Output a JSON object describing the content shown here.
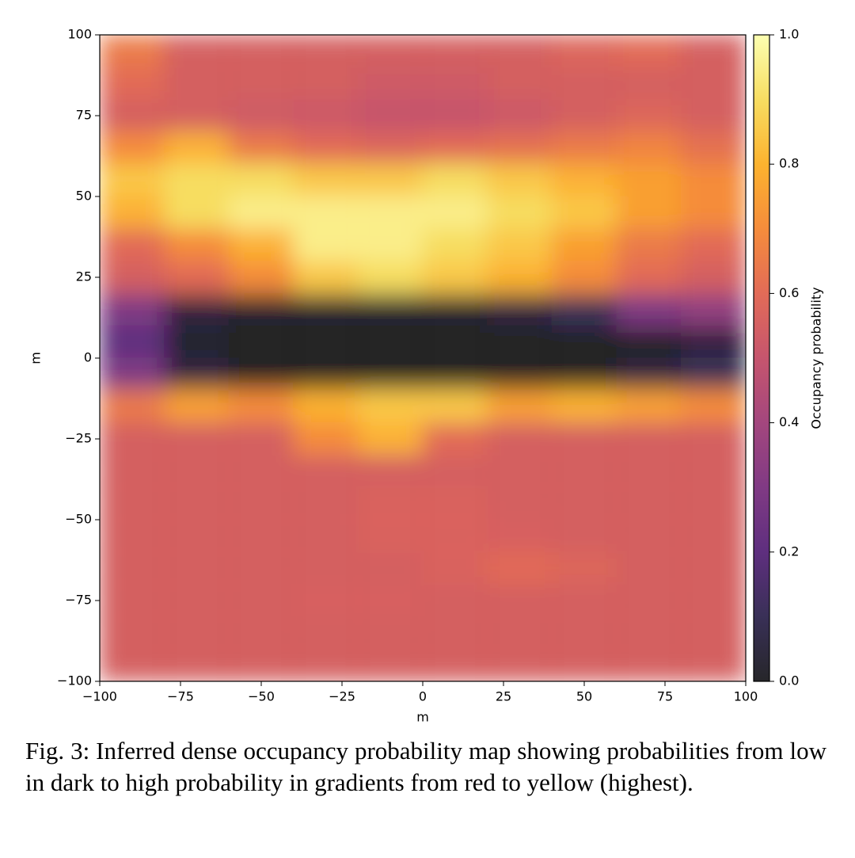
{
  "chart_data": {
    "type": "heatmap",
    "xlabel": "m",
    "ylabel": "m",
    "colorbar_label": "Occupancy probability",
    "colormap": "inferno",
    "xlim": [
      -100,
      100
    ],
    "ylim": [
      -100,
      100
    ],
    "clim": [
      0,
      1
    ],
    "xticks": [
      {
        "value": -100,
        "label": "−100"
      },
      {
        "value": -75,
        "label": "−75"
      },
      {
        "value": -50,
        "label": "−50"
      },
      {
        "value": -25,
        "label": "−25"
      },
      0,
      25,
      50,
      75,
      100
    ],
    "yticks": [
      {
        "value": -100,
        "label": "−100"
      },
      {
        "value": -75,
        "label": "−75"
      },
      {
        "value": -50,
        "label": "−50"
      },
      {
        "value": -25,
        "label": "−25"
      },
      0,
      25,
      50,
      75,
      100
    ],
    "cticks": [
      {
        "value": 0,
        "label": "0.0"
      },
      0.2,
      0.4,
      0.6,
      {
        "value": 1,
        "label": "1.0"
      },
      0.8
    ],
    "z": [
      [
        0.65,
        0.55,
        0.55,
        0.55,
        0.55,
        0.55,
        0.55,
        0.58,
        0.6,
        0.55
      ],
      [
        0.6,
        0.55,
        0.55,
        0.55,
        0.53,
        0.53,
        0.55,
        0.55,
        0.55,
        0.55
      ],
      [
        0.55,
        0.55,
        0.53,
        0.52,
        0.5,
        0.5,
        0.52,
        0.55,
        0.58,
        0.55
      ],
      [
        0.7,
        0.8,
        0.65,
        0.6,
        0.58,
        0.6,
        0.62,
        0.65,
        0.68,
        0.62
      ],
      [
        0.85,
        0.9,
        0.9,
        0.85,
        0.85,
        0.9,
        0.85,
        0.8,
        0.75,
        0.7
      ],
      [
        0.8,
        0.9,
        0.95,
        0.95,
        0.95,
        0.95,
        0.9,
        0.85,
        0.75,
        0.7
      ],
      [
        0.6,
        0.7,
        0.8,
        0.95,
        0.95,
        0.9,
        0.85,
        0.75,
        0.65,
        0.6
      ],
      [
        0.55,
        0.6,
        0.7,
        0.85,
        0.9,
        0.85,
        0.8,
        0.7,
        0.6,
        0.55
      ],
      [
        0.3,
        0.05,
        0.02,
        0.02,
        0.02,
        0.02,
        0.05,
        0.1,
        0.3,
        0.35
      ],
      [
        0.2,
        0.02,
        0,
        0,
        0,
        0,
        0,
        0,
        0,
        0.05
      ],
      [
        0.3,
        0.05,
        0,
        0,
        0,
        0,
        0,
        0,
        0.05,
        0.1
      ],
      [
        0.65,
        0.75,
        0.7,
        0.8,
        0.85,
        0.85,
        0.75,
        0.8,
        0.75,
        0.7
      ],
      [
        0.55,
        0.55,
        0.55,
        0.7,
        0.8,
        0.6,
        0.55,
        0.55,
        0.55,
        0.55
      ],
      [
        0.55,
        0.55,
        0.55,
        0.55,
        0.55,
        0.55,
        0.55,
        0.55,
        0.55,
        0.55
      ],
      [
        0.55,
        0.55,
        0.55,
        0.55,
        0.57,
        0.57,
        0.55,
        0.55,
        0.55,
        0.55
      ],
      [
        0.55,
        0.55,
        0.55,
        0.55,
        0.57,
        0.57,
        0.56,
        0.55,
        0.55,
        0.55
      ],
      [
        0.55,
        0.55,
        0.55,
        0.55,
        0.55,
        0.57,
        0.6,
        0.58,
        0.55,
        0.55
      ],
      [
        0.55,
        0.55,
        0.55,
        0.56,
        0.56,
        0.55,
        0.55,
        0.55,
        0.55,
        0.55
      ],
      [
        0.55,
        0.55,
        0.55,
        0.55,
        0.55,
        0.55,
        0.55,
        0.55,
        0.55,
        0.55
      ],
      [
        0.55,
        0.55,
        0.55,
        0.55,
        0.55,
        0.55,
        0.55,
        0.55,
        0.55,
        0.55
      ]
    ]
  },
  "caption": "Fig. 3: Inferred dense occupancy probability map showing probabilities from low in dark to high probability in gradients from red to yellow (highest)."
}
